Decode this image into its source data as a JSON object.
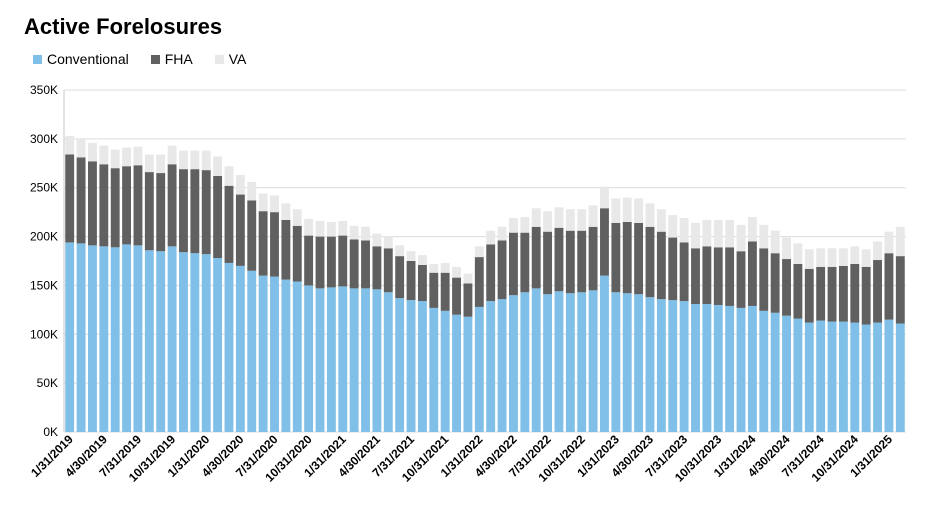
{
  "chart_data": {
    "type": "bar",
    "stacked": true,
    "title": "Active Forelosures",
    "xlabel": "",
    "ylabel": "",
    "ylim": [
      0,
      350000
    ],
    "yticks": [
      "0K",
      "50K",
      "100K",
      "150K",
      "200K",
      "250K",
      "300K",
      "350K"
    ],
    "grid": true,
    "legend_position": "top-left",
    "x_tick_labels": [
      "1/31/2019",
      "4/30/2019",
      "7/31/2019",
      "10/31/2019",
      "1/31/2020",
      "4/30/2020",
      "7/31/2020",
      "10/31/2020",
      "1/31/2021",
      "4/30/2021",
      "7/31/2021",
      "10/31/2021",
      "1/31/2022",
      "4/30/2022",
      "7/31/2022",
      "10/31/2022",
      "1/31/2023",
      "4/30/2023",
      "7/31/2023",
      "10/31/2023",
      "1/31/2024",
      "4/30/2024",
      "7/31/2024",
      "10/31/2024",
      "1/31/2025"
    ],
    "tick_every": 3,
    "series": [
      {
        "name": "Conventional",
        "color": "#7fbfe8",
        "values": [
          194000,
          193000,
          191000,
          190000,
          189000,
          192000,
          191000,
          186000,
          185000,
          190000,
          184000,
          183000,
          182000,
          178000,
          173000,
          170000,
          165000,
          160000,
          159000,
          156000,
          154000,
          150000,
          147000,
          148000,
          149000,
          147000,
          147000,
          146000,
          143000,
          137000,
          135000,
          134000,
          127000,
          124000,
          120000,
          118000,
          128000,
          134000,
          136000,
          140000,
          143000,
          147000,
          141000,
          144000,
          142000,
          143000,
          145000,
          160000,
          143000,
          142000,
          141000,
          138000,
          136000,
          135000,
          134000,
          131000,
          131000,
          130000,
          129000,
          127000,
          129000,
          124000,
          122000,
          119000,
          116000,
          112000,
          114000,
          113000,
          113000,
          112000,
          110000,
          112000,
          115000,
          111000
        ]
      },
      {
        "name": "FHA",
        "color": "#606060",
        "values": [
          90000,
          88000,
          86000,
          84000,
          81000,
          80000,
          82000,
          80000,
          80000,
          84000,
          85000,
          86000,
          86000,
          84000,
          79000,
          73000,
          72000,
          66000,
          66000,
          61000,
          57000,
          51000,
          53000,
          52000,
          52000,
          50000,
          49000,
          44000,
          45000,
          43000,
          40000,
          37000,
          36000,
          39000,
          38000,
          34000,
          51000,
          58000,
          60000,
          64000,
          61000,
          63000,
          64000,
          65000,
          64000,
          63000,
          65000,
          69000,
          71000,
          73000,
          73000,
          72000,
          69000,
          64000,
          60000,
          57000,
          59000,
          59000,
          60000,
          58000,
          66000,
          64000,
          61000,
          58000,
          56000,
          55000,
          55000,
          56000,
          57000,
          60000,
          59000,
          64000,
          68000,
          69000
        ]
      },
      {
        "name": "VA",
        "color": "#e8e8e8",
        "values": [
          19000,
          19000,
          19000,
          19000,
          19000,
          19000,
          19000,
          18000,
          19000,
          19000,
          19000,
          19000,
          20000,
          20000,
          20000,
          20000,
          19000,
          18000,
          17000,
          17000,
          17000,
          17000,
          16000,
          15000,
          15000,
          14000,
          14000,
          13000,
          12000,
          11000,
          10000,
          10000,
          9000,
          10000,
          11000,
          10000,
          11000,
          14000,
          14000,
          15000,
          16000,
          19000,
          21000,
          21000,
          22000,
          22000,
          22000,
          22000,
          25000,
          25000,
          25000,
          24000,
          23000,
          23000,
          25000,
          26000,
          27000,
          28000,
          28000,
          27000,
          25000,
          24000,
          23000,
          22000,
          21000,
          20000,
          19000,
          19000,
          18000,
          18000,
          18000,
          19000,
          22000,
          30000
        ]
      }
    ]
  }
}
